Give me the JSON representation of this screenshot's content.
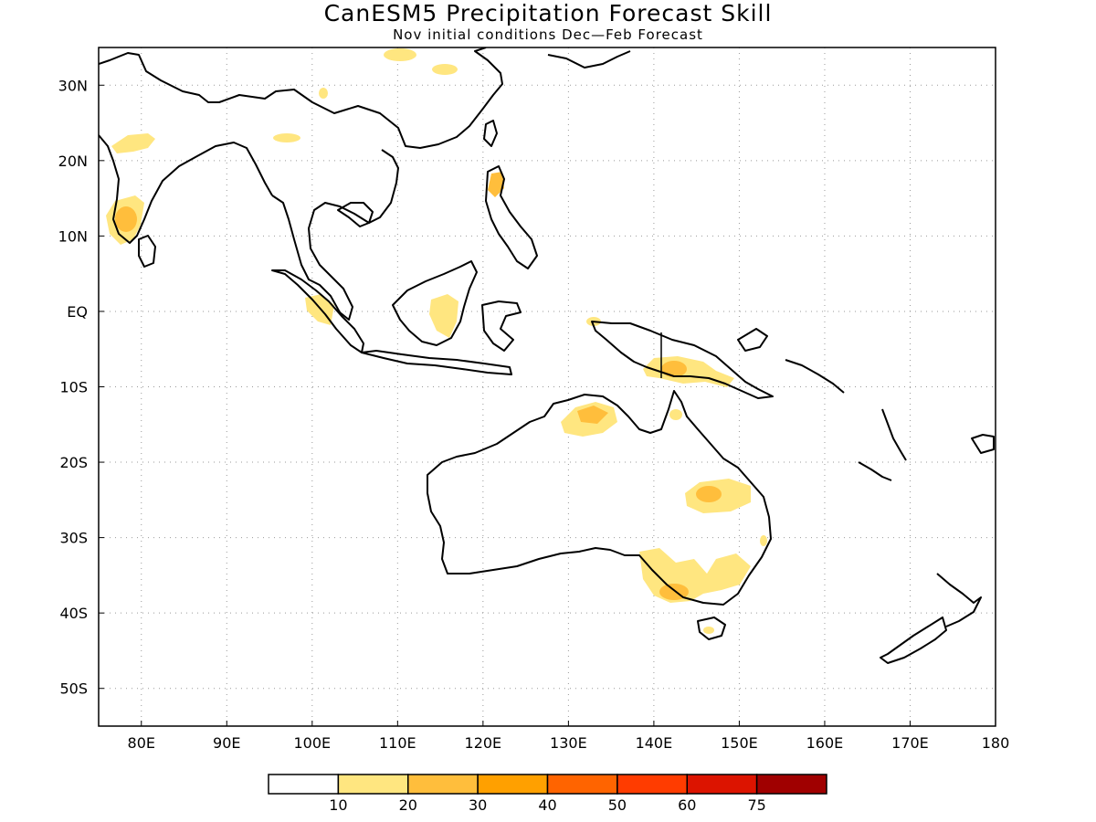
{
  "title": "CanESM5 Precipitation Forecast Skill",
  "subtitle": "Nov initial conditions  Dec—Feb Forecast",
  "map": {
    "lon_range": [
      75,
      180
    ],
    "lat_range": [
      -55,
      35
    ],
    "lon_ticks": [
      {
        "value": 80,
        "label": "80E"
      },
      {
        "value": 90,
        "label": "90E"
      },
      {
        "value": 100,
        "label": "100E"
      },
      {
        "value": 110,
        "label": "110E"
      },
      {
        "value": 120,
        "label": "120E"
      },
      {
        "value": 130,
        "label": "130E"
      },
      {
        "value": 140,
        "label": "140E"
      },
      {
        "value": 150,
        "label": "150E"
      },
      {
        "value": 160,
        "label": "160E"
      },
      {
        "value": 170,
        "label": "170E"
      },
      {
        "value": 180,
        "label": "180"
      }
    ],
    "lat_ticks": [
      {
        "value": 30,
        "label": "30N"
      },
      {
        "value": 20,
        "label": "20N"
      },
      {
        "value": 10,
        "label": "10N"
      },
      {
        "value": 0,
        "label": "EQ"
      },
      {
        "value": -10,
        "label": "10S"
      },
      {
        "value": -20,
        "label": "20S"
      },
      {
        "value": -30,
        "label": "30S"
      },
      {
        "value": -40,
        "label": "40S"
      },
      {
        "value": -50,
        "label": "50S"
      }
    ],
    "grid": true
  },
  "colorbar": {
    "colors": [
      "#ffffff",
      "#ffe680",
      "#ffbe3c",
      "#ffa000",
      "#ff6400",
      "#ff3c00",
      "#dc1400",
      "#a00000"
    ],
    "labels": [
      "10",
      "20",
      "30",
      "40",
      "50",
      "60",
      "75"
    ]
  }
}
